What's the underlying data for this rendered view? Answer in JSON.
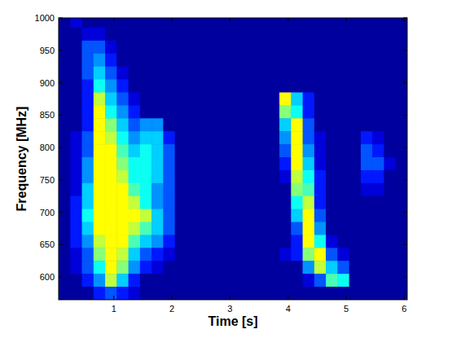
{
  "chart_data": {
    "type": "heatmap",
    "xlabel": "Time [s]",
    "ylabel": "Frequency [MHz]",
    "xlim": [
      0.05,
      6.05
    ],
    "ylim": [
      565,
      1000
    ],
    "xticks": [
      1,
      2,
      3,
      4,
      5,
      6
    ],
    "yticks": [
      600,
      650,
      700,
      750,
      800,
      850,
      900,
      950,
      1000
    ],
    "zlim": [
      0,
      10
    ],
    "x": [
      0.15,
      0.35,
      0.55,
      0.75,
      0.95,
      1.15,
      1.35,
      1.55,
      1.75,
      1.95,
      2.15,
      2.35,
      2.55,
      2.75,
      2.95,
      3.15,
      3.35,
      3.55,
      3.75,
      3.95,
      4.15,
      4.35,
      4.55,
      4.75,
      4.95,
      5.15,
      5.35,
      5.55,
      5.75,
      5.95
    ],
    "y": [
      995,
      975,
      955,
      935,
      915,
      895,
      875,
      855,
      835,
      815,
      795,
      775,
      755,
      735,
      715,
      695,
      675,
      655,
      635,
      615,
      595,
      575
    ],
    "cells": [
      [
        0,
        1,
        0,
        0,
        0,
        0,
        0,
        0,
        0,
        0,
        0,
        0,
        0,
        0,
        0,
        0,
        0,
        0,
        0,
        0,
        0,
        0,
        0,
        0,
        0,
        0,
        0,
        0,
        0,
        0
      ],
      [
        0,
        0,
        1,
        1,
        0,
        0,
        0,
        0,
        0,
        0,
        0,
        0,
        0,
        0,
        0,
        0,
        0,
        0,
        0,
        0,
        0,
        0,
        0,
        0,
        0,
        0,
        0,
        0,
        0,
        0
      ],
      [
        0,
        0,
        3,
        3,
        1,
        0,
        0,
        0,
        0,
        0,
        0,
        0,
        0,
        0,
        0,
        0,
        0,
        0,
        0,
        0,
        0,
        0,
        0,
        0,
        0,
        0,
        0,
        0,
        0,
        0
      ],
      [
        0,
        0,
        3,
        4,
        2,
        0,
        0,
        0,
        0,
        0,
        0,
        0,
        0,
        0,
        0,
        0,
        0,
        0,
        0,
        0,
        0,
        0,
        0,
        0,
        0,
        0,
        0,
        0,
        0,
        0
      ],
      [
        0,
        0,
        3,
        5,
        3,
        1,
        0,
        0,
        0,
        0,
        0,
        0,
        0,
        0,
        0,
        0,
        0,
        0,
        0,
        0,
        0,
        0,
        0,
        0,
        0,
        0,
        0,
        0,
        0,
        0
      ],
      [
        0,
        0,
        2,
        6,
        4,
        2,
        0,
        0,
        0,
        0,
        0,
        0,
        0,
        0,
        0,
        0,
        0,
        0,
        0,
        0,
        0,
        0,
        0,
        0,
        0,
        0,
        0,
        0,
        0,
        0
      ],
      [
        0,
        0,
        2,
        9,
        5,
        3,
        1,
        0,
        0,
        0,
        0,
        0,
        0,
        0,
        0,
        0,
        0,
        0,
        0,
        10,
        5,
        2,
        0,
        0,
        0,
        0,
        0,
        0,
        0,
        0
      ],
      [
        0,
        0,
        2,
        10,
        6,
        4,
        2,
        0,
        0,
        0,
        0,
        0,
        0,
        0,
        0,
        0,
        0,
        0,
        0,
        8,
        6,
        2,
        0,
        0,
        0,
        0,
        0,
        0,
        0,
        0
      ],
      [
        0,
        0,
        2,
        10,
        8,
        5,
        3,
        4,
        4,
        0,
        0,
        0,
        0,
        0,
        0,
        0,
        0,
        0,
        0,
        5,
        10,
        3,
        0,
        0,
        0,
        0,
        0,
        0,
        0,
        0
      ],
      [
        0,
        1,
        3,
        10,
        9,
        6,
        4,
        5,
        5,
        2,
        0,
        0,
        0,
        0,
        0,
        0,
        0,
        0,
        0,
        4,
        10,
        3,
        1,
        0,
        0,
        0,
        2,
        1,
        0,
        0
      ],
      [
        0,
        1,
        3,
        10,
        10,
        7,
        5,
        6,
        5,
        3,
        0,
        0,
        0,
        0,
        0,
        0,
        0,
        0,
        0,
        3,
        10,
        4,
        1,
        0,
        0,
        0,
        3,
        2,
        0,
        0
      ],
      [
        0,
        1,
        4,
        10,
        10,
        8,
        6,
        6,
        5,
        3,
        0,
        0,
        0,
        0,
        0,
        0,
        0,
        0,
        0,
        2,
        10,
        5,
        1,
        0,
        0,
        0,
        3,
        3,
        1,
        0
      ],
      [
        0,
        1,
        4,
        10,
        10,
        9,
        6,
        6,
        5,
        3,
        0,
        0,
        0,
        0,
        0,
        0,
        0,
        0,
        0,
        1,
        9,
        6,
        2,
        0,
        0,
        0,
        2,
        2,
        0,
        0
      ],
      [
        0,
        1,
        5,
        10,
        10,
        10,
        7,
        6,
        4,
        3,
        0,
        0,
        0,
        0,
        0,
        0,
        0,
        0,
        0,
        0,
        8,
        7,
        2,
        0,
        0,
        0,
        1,
        1,
        0,
        0
      ],
      [
        0,
        2,
        5,
        10,
        10,
        10,
        9,
        6,
        4,
        3,
        0,
        0,
        0,
        0,
        0,
        0,
        0,
        0,
        0,
        0,
        6,
        9,
        2,
        0,
        0,
        0,
        0,
        0,
        0,
        0
      ],
      [
        0,
        2,
        6,
        10,
        10,
        10,
        10,
        9,
        5,
        3,
        0,
        0,
        0,
        0,
        0,
        0,
        0,
        0,
        0,
        0,
        5,
        10,
        3,
        0,
        0,
        0,
        0,
        0,
        0,
        0
      ],
      [
        0,
        2,
        5,
        10,
        10,
        10,
        9,
        7,
        5,
        3,
        0,
        0,
        0,
        0,
        0,
        0,
        0,
        0,
        0,
        0,
        3,
        10,
        4,
        0,
        0,
        0,
        0,
        0,
        0,
        0
      ],
      [
        0,
        2,
        4,
        9,
        10,
        10,
        7,
        5,
        4,
        2,
        0,
        0,
        0,
        0,
        0,
        0,
        0,
        0,
        0,
        0,
        2,
        10,
        6,
        1,
        0,
        0,
        0,
        0,
        0,
        0
      ],
      [
        0,
        1,
        3,
        8,
        10,
        9,
        5,
        3,
        2,
        1,
        0,
        0,
        0,
        0,
        0,
        0,
        0,
        0,
        0,
        1,
        2,
        8,
        10,
        3,
        1,
        0,
        0,
        0,
        0,
        0
      ],
      [
        0,
        1,
        3,
        6,
        10,
        8,
        4,
        2,
        1,
        0,
        0,
        0,
        0,
        0,
        0,
        0,
        0,
        0,
        0,
        0,
        0,
        4,
        9,
        5,
        3,
        0,
        0,
        0,
        0,
        0
      ],
      [
        0,
        0,
        2,
        4,
        9,
        5,
        2,
        0,
        0,
        0,
        0,
        0,
        0,
        0,
        0,
        0,
        0,
        0,
        0,
        0,
        0,
        1,
        3,
        7,
        6,
        0,
        0,
        0,
        0,
        0
      ],
      [
        0,
        0,
        0,
        2,
        3,
        2,
        1,
        0,
        0,
        0,
        0,
        0,
        0,
        0,
        0,
        0,
        0,
        0,
        0,
        0,
        0,
        0,
        0,
        0,
        0,
        0,
        0,
        0,
        0,
        0
      ]
    ]
  }
}
